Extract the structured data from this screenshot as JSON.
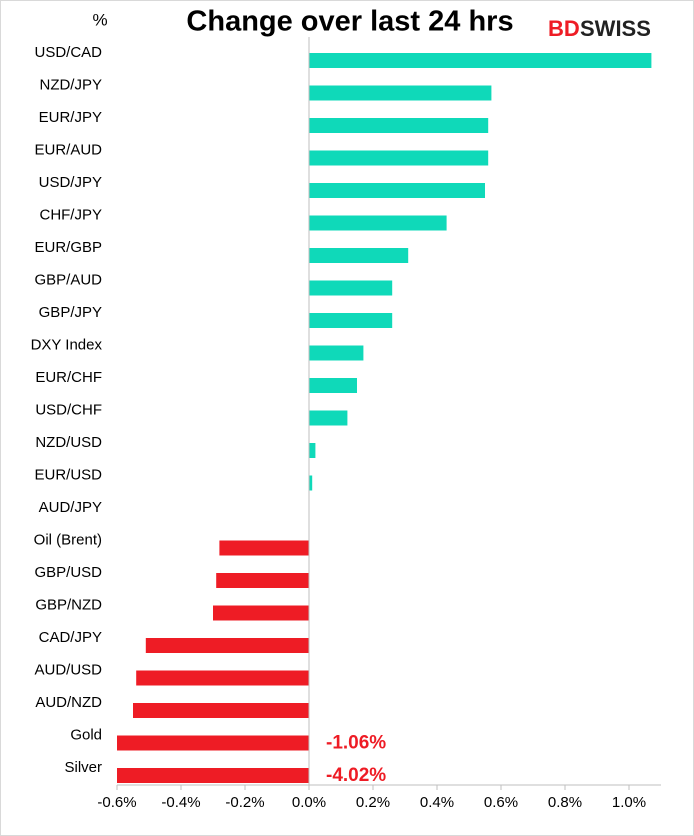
{
  "chart_data": {
    "type": "barh",
    "title": "Change over last 24 hrs",
    "unit_label": "%",
    "logo": [
      "BD",
      "SWISS"
    ],
    "categories": [
      "USD/CAD",
      "NZD/JPY",
      "EUR/JPY",
      "EUR/AUD",
      "USD/JPY",
      "CHF/JPY",
      "EUR/GBP",
      "GBP/AUD",
      "GBP/JPY",
      "DXY Index",
      "EUR/CHF",
      "USD/CHF",
      "NZD/USD",
      "EUR/USD",
      "AUD/JPY",
      "Oil (Brent)",
      "GBP/USD",
      "GBP/NZD",
      "CAD/JPY",
      "AUD/USD",
      "AUD/NZD",
      "Gold",
      "Silver"
    ],
    "values": [
      1.07,
      0.57,
      0.56,
      0.56,
      0.55,
      0.43,
      0.31,
      0.26,
      0.26,
      0.17,
      0.15,
      0.12,
      0.02,
      0.01,
      0,
      -0.28,
      -0.29,
      -0.3,
      -0.51,
      -0.54,
      -0.55,
      -1.06,
      -4.02
    ],
    "value_labels": [
      null,
      null,
      null,
      null,
      null,
      null,
      null,
      null,
      null,
      null,
      null,
      null,
      null,
      null,
      null,
      null,
      null,
      null,
      null,
      null,
      null,
      "-1.06%",
      "-4.02%"
    ],
    "positive_color": "#0fd9b9",
    "negative_color": "#ee1c25",
    "xlim": [
      -0.6,
      1.1
    ],
    "xticks": [
      {
        "value": -0.6,
        "label": "-0.6%"
      },
      {
        "value": -0.4,
        "label": "-0.4%"
      },
      {
        "value": -0.2,
        "label": "-0.2%"
      },
      {
        "value": 0,
        "label": "0.0%"
      },
      {
        "value": 0.2,
        "label": "0.2%"
      },
      {
        "value": 0.4,
        "label": "0.4%"
      },
      {
        "value": 0.6,
        "label": "0.6%"
      },
      {
        "value": 0.8,
        "label": "0.8%"
      },
      {
        "value": 1.0,
        "label": "1.0%"
      }
    ]
  }
}
